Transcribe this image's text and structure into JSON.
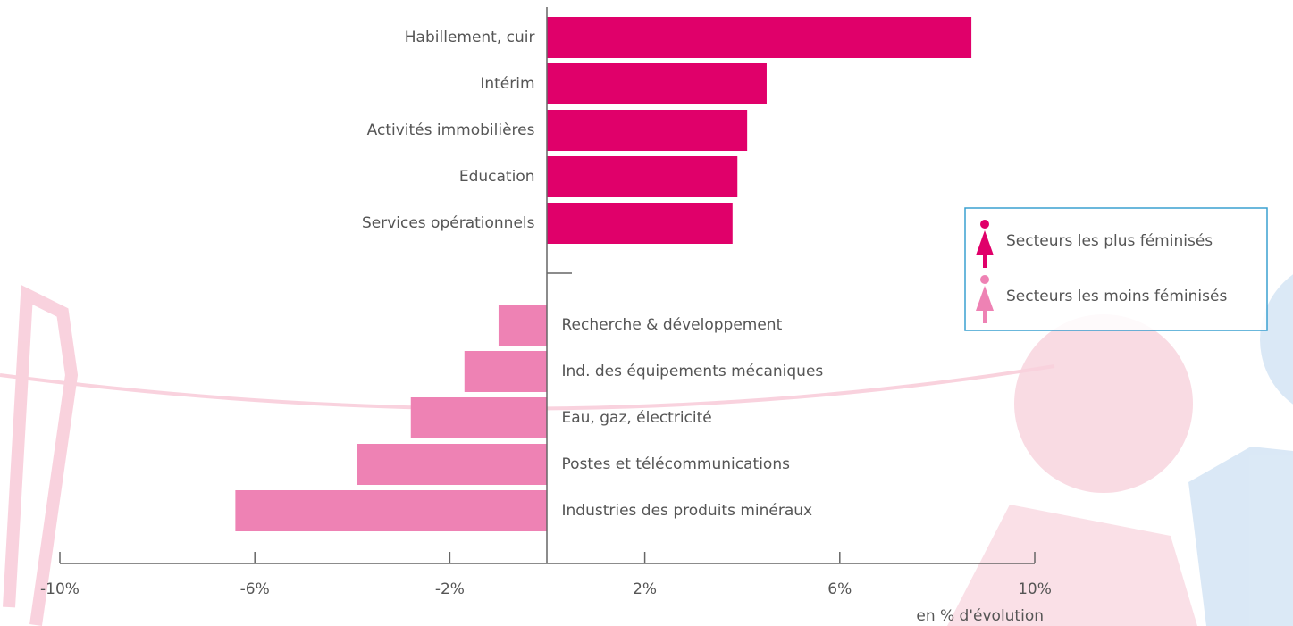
{
  "chart_data": {
    "type": "bar",
    "orientation": "horizontal",
    "categories": [
      "Habillement, cuir",
      "Intérim",
      "Activités immobilières",
      "Education",
      "Services opérationnels",
      "Recherche & développement",
      "Ind. des équipements mécaniques",
      "Eau, gaz, électricité",
      "Postes et télécommunications",
      "Industries des produits minéraux"
    ],
    "series": [
      {
        "name": "Secteurs les plus féminisés",
        "color": "#e0006a",
        "values": [
          8.7,
          4.5,
          4.1,
          3.9,
          3.8,
          null,
          null,
          null,
          null,
          null
        ]
      },
      {
        "name": "Secteurs les moins féminisés",
        "color": "#ee82b4",
        "values": [
          null,
          null,
          null,
          null,
          null,
          -1.0,
          -1.7,
          -2.8,
          -3.9,
          -6.4
        ]
      }
    ],
    "xlim": [
      -10,
      10
    ],
    "xticks": [
      {
        "value": -10,
        "label": "-10%"
      },
      {
        "value": -6,
        "label": "-6%"
      },
      {
        "value": -2,
        "label": "-2%"
      },
      {
        "value": 2,
        "label": "2%"
      },
      {
        "value": 6,
        "label": "6%"
      },
      {
        "value": 10,
        "label": "10%"
      }
    ],
    "xlabel": "en % d'évolution",
    "legend": "right"
  }
}
